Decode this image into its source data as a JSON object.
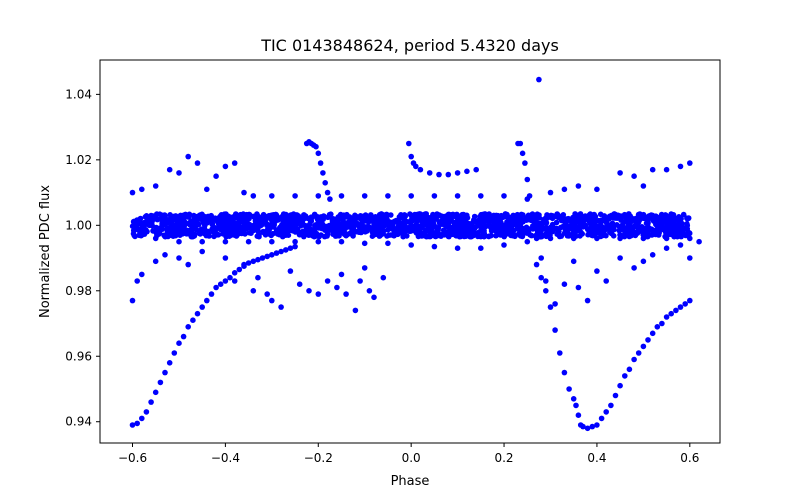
{
  "chart_data": {
    "type": "scatter",
    "title": "TIC 0143848624, period 5.4320 days",
    "xlabel": "Phase",
    "ylabel": "Normalized PDC flux",
    "xlim": [
      -0.67,
      0.665
    ],
    "ylim": [
      0.9335,
      1.0505
    ],
    "xticks": [
      -0.6,
      -0.4,
      -0.2,
      0.0,
      0.2,
      0.4,
      0.6
    ],
    "xtick_labels": [
      "−0.6",
      "−0.4",
      "−0.2",
      "0.0",
      "0.2",
      "0.4",
      "0.6"
    ],
    "yticks": [
      0.94,
      0.96,
      0.98,
      1.0,
      1.02,
      1.04
    ],
    "ytick_labels": [
      "0.94",
      "0.96",
      "0.98",
      "1.00",
      "1.02",
      "1.04"
    ],
    "grid": false,
    "marker_color": "#0000ff",
    "series": [
      {
        "points": [
          [
            -0.6,
            0.939
          ],
          [
            -0.59,
            0.9395
          ],
          [
            -0.58,
            0.941
          ],
          [
            -0.57,
            0.943
          ],
          [
            -0.56,
            0.946
          ],
          [
            -0.55,
            0.949
          ],
          [
            -0.54,
            0.952
          ],
          [
            -0.53,
            0.955
          ],
          [
            -0.52,
            0.958
          ],
          [
            -0.51,
            0.961
          ],
          [
            -0.5,
            0.964
          ],
          [
            -0.49,
            0.966
          ],
          [
            -0.48,
            0.969
          ],
          [
            -0.47,
            0.971
          ],
          [
            -0.46,
            0.973
          ],
          [
            -0.45,
            0.975
          ],
          [
            -0.44,
            0.977
          ],
          [
            -0.43,
            0.979
          ],
          [
            -0.42,
            0.981
          ],
          [
            -0.41,
            0.982
          ],
          [
            -0.4,
            0.983
          ],
          [
            -0.39,
            0.984
          ],
          [
            -0.38,
            0.9855
          ],
          [
            -0.37,
            0.9865
          ],
          [
            -0.36,
            0.9875
          ],
          [
            -0.35,
            0.9885
          ],
          [
            -0.34,
            0.989
          ],
          [
            -0.33,
            0.9895
          ],
          [
            -0.32,
            0.99
          ],
          [
            -0.31,
            0.9905
          ],
          [
            -0.3,
            0.991
          ],
          [
            -0.29,
            0.9915
          ],
          [
            -0.28,
            0.992
          ],
          [
            -0.27,
            0.9925
          ],
          [
            -0.26,
            0.993
          ],
          [
            -0.25,
            0.9935
          ],
          [
            -0.225,
            1.025
          ],
          [
            -0.22,
            1.0255
          ],
          [
            -0.215,
            1.025
          ],
          [
            -0.21,
            1.0245
          ],
          [
            -0.205,
            1.024
          ],
          [
            -0.2,
            1.022
          ],
          [
            -0.195,
            1.019
          ],
          [
            -0.19,
            1.016
          ],
          [
            -0.185,
            1.013
          ],
          [
            -0.18,
            1.01
          ],
          [
            -0.175,
            1.008
          ],
          [
            -0.005,
            1.025
          ],
          [
            0.0,
            1.021
          ],
          [
            0.005,
            1.019
          ],
          [
            0.01,
            1.018
          ],
          [
            0.02,
            1.017
          ],
          [
            0.04,
            1.016
          ],
          [
            0.06,
            1.0155
          ],
          [
            0.08,
            1.0155
          ],
          [
            0.1,
            1.016
          ],
          [
            0.12,
            1.0165
          ],
          [
            0.14,
            1.017
          ],
          [
            0.23,
            1.025
          ],
          [
            0.235,
            1.025
          ],
          [
            0.24,
            1.022
          ],
          [
            0.245,
            1.019
          ],
          [
            0.25,
            1.014
          ],
          [
            0.255,
            1.009
          ],
          [
            0.26,
            1.002
          ],
          [
            0.27,
            0.996
          ],
          [
            0.28,
            0.99
          ],
          [
            0.29,
            0.983
          ],
          [
            0.3,
            0.975
          ],
          [
            0.31,
            0.968
          ],
          [
            0.32,
            0.961
          ],
          [
            0.33,
            0.955
          ],
          [
            0.34,
            0.95
          ],
          [
            0.35,
            0.947
          ],
          [
            0.355,
            0.945
          ],
          [
            0.36,
            0.942
          ],
          [
            0.365,
            0.939
          ],
          [
            0.37,
            0.9385
          ],
          [
            0.38,
            0.938
          ],
          [
            0.39,
            0.9385
          ],
          [
            0.4,
            0.939
          ],
          [
            0.41,
            0.941
          ],
          [
            0.42,
            0.943
          ],
          [
            0.43,
            0.945
          ],
          [
            0.44,
            0.948
          ],
          [
            0.45,
            0.951
          ],
          [
            0.46,
            0.954
          ],
          [
            0.47,
            0.956
          ],
          [
            0.48,
            0.959
          ],
          [
            0.49,
            0.961
          ],
          [
            0.5,
            0.963
          ],
          [
            0.51,
            0.965
          ],
          [
            0.52,
            0.967
          ],
          [
            0.53,
            0.969
          ],
          [
            0.54,
            0.97
          ],
          [
            0.55,
            0.972
          ],
          [
            0.56,
            0.973
          ],
          [
            0.57,
            0.974
          ],
          [
            0.58,
            0.975
          ],
          [
            0.59,
            0.976
          ],
          [
            0.6,
            0.977
          ],
          [
            0.275,
            1.0445
          ],
          [
            -0.6,
            1.01
          ],
          [
            -0.58,
            1.011
          ],
          [
            -0.55,
            1.012
          ],
          [
            -0.52,
            1.017
          ],
          [
            -0.5,
            1.016
          ],
          [
            -0.48,
            1.021
          ],
          [
            -0.46,
            1.019
          ],
          [
            -0.44,
            1.011
          ],
          [
            -0.42,
            1.015
          ],
          [
            -0.4,
            1.018
          ],
          [
            -0.38,
            1.019
          ],
          [
            -0.36,
            1.01
          ],
          [
            -0.34,
            1.009
          ],
          [
            -0.3,
            1.009
          ],
          [
            -0.25,
            1.009
          ],
          [
            -0.2,
            1.009
          ],
          [
            -0.15,
            1.009
          ],
          [
            -0.1,
            1.009
          ],
          [
            -0.05,
            1.009
          ],
          [
            0.0,
            1.009
          ],
          [
            0.05,
            1.009
          ],
          [
            0.1,
            1.009
          ],
          [
            0.15,
            1.009
          ],
          [
            0.2,
            1.009
          ],
          [
            0.25,
            1.008
          ],
          [
            0.3,
            1.01
          ],
          [
            0.33,
            1.011
          ],
          [
            0.36,
            1.012
          ],
          [
            0.4,
            1.011
          ],
          [
            0.45,
            1.016
          ],
          [
            0.48,
            1.015
          ],
          [
            0.5,
            1.012
          ],
          [
            0.52,
            1.017
          ],
          [
            0.55,
            1.017
          ],
          [
            0.58,
            1.018
          ],
          [
            0.6,
            1.019
          ],
          [
            -0.6,
            0.977
          ],
          [
            -0.59,
            0.983
          ],
          [
            -0.58,
            0.985
          ],
          [
            -0.55,
            0.989
          ],
          [
            -0.53,
            0.991
          ],
          [
            -0.5,
            0.99
          ],
          [
            -0.48,
            0.988
          ],
          [
            -0.45,
            0.992
          ],
          [
            -0.4,
            0.99
          ],
          [
            -0.38,
            0.983
          ],
          [
            -0.36,
            0.988
          ],
          [
            -0.34,
            0.98
          ],
          [
            -0.33,
            0.984
          ],
          [
            -0.31,
            0.979
          ],
          [
            -0.3,
            0.977
          ],
          [
            -0.28,
            0.975
          ],
          [
            -0.26,
            0.986
          ],
          [
            -0.24,
            0.982
          ],
          [
            -0.22,
            0.98
          ],
          [
            -0.2,
            0.979
          ],
          [
            -0.18,
            0.983
          ],
          [
            -0.16,
            0.981
          ],
          [
            -0.15,
            0.985
          ],
          [
            -0.14,
            0.979
          ],
          [
            -0.12,
            0.974
          ],
          [
            -0.11,
            0.983
          ],
          [
            -0.1,
            0.987
          ],
          [
            -0.09,
            0.98
          ],
          [
            -0.08,
            0.978
          ],
          [
            -0.06,
            0.984
          ],
          [
            0.27,
            0.988
          ],
          [
            0.28,
            0.984
          ],
          [
            0.29,
            0.98
          ],
          [
            0.31,
            0.976
          ],
          [
            0.33,
            0.982
          ],
          [
            0.35,
            0.989
          ],
          [
            0.36,
            0.981
          ],
          [
            0.38,
            0.977
          ],
          [
            0.4,
            0.986
          ],
          [
            0.42,
            0.983
          ],
          [
            0.45,
            0.99
          ],
          [
            0.48,
            0.987
          ],
          [
            0.5,
            0.989
          ],
          [
            0.52,
            0.991
          ],
          [
            0.55,
            0.993
          ],
          [
            0.58,
            0.994
          ],
          [
            0.6,
            0.99
          ],
          [
            0.62,
            0.995
          ],
          [
            -0.55,
            0.996
          ],
          [
            -0.5,
            0.995
          ],
          [
            -0.45,
            0.995
          ],
          [
            -0.4,
            0.995
          ],
          [
            -0.35,
            0.995
          ],
          [
            -0.3,
            0.995
          ],
          [
            -0.25,
            0.995
          ],
          [
            -0.2,
            0.995
          ],
          [
            -0.15,
            0.995
          ],
          [
            -0.1,
            0.9945
          ],
          [
            -0.05,
            0.9945
          ],
          [
            0.0,
            0.994
          ],
          [
            0.05,
            0.9935
          ],
          [
            0.1,
            0.993
          ],
          [
            0.15,
            0.993
          ],
          [
            0.2,
            0.994
          ],
          [
            0.25,
            0.995
          ],
          [
            0.3,
            0.996
          ],
          [
            0.35,
            0.996
          ],
          [
            0.4,
            0.996
          ],
          [
            0.45,
            0.996
          ],
          [
            0.5,
            0.996
          ],
          [
            0.55,
            0.996
          ],
          [
            0.6,
            0.996
          ]
        ]
      }
    ],
    "band": {
      "x_range": [
        -0.6,
        0.6
      ],
      "y_center": 1.0,
      "y_half_width": 0.0035,
      "count": 1800
    }
  }
}
